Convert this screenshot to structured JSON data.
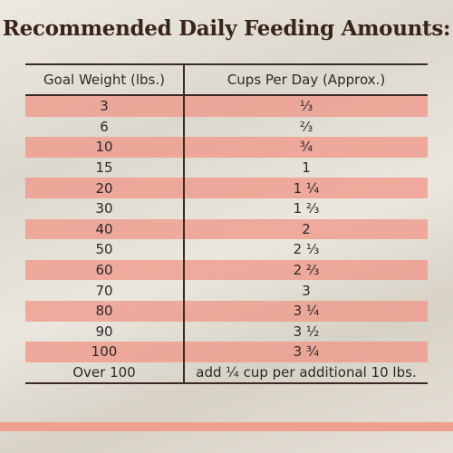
{
  "title": "Recommended Daily Feeding Amounts:",
  "table": {
    "headers": [
      "Goal Weight (lbs.)",
      "Cups Per Day (Approx.)"
    ],
    "rows": [
      [
        "3",
        "⅓"
      ],
      [
        "6",
        "⅔"
      ],
      [
        "10",
        "¾"
      ],
      [
        "15",
        "1"
      ],
      [
        "20",
        "1 ¼"
      ],
      [
        "30",
        "1 ⅔"
      ],
      [
        "40",
        "2"
      ],
      [
        "50",
        "2 ⅓"
      ],
      [
        "60",
        "2 ⅔"
      ],
      [
        "70",
        "3"
      ],
      [
        "80",
        "3 ¼"
      ],
      [
        "90",
        "3 ½"
      ],
      [
        "100",
        "3 ¾"
      ],
      [
        "Over 100",
        "add ¼ cup per additional 10 lbs."
      ]
    ]
  }
}
